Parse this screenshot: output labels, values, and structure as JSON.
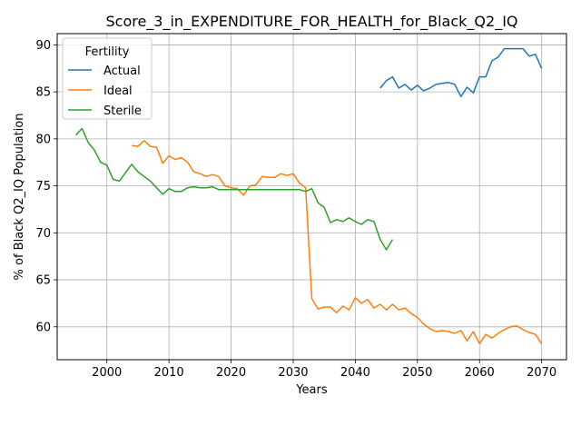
{
  "chart_data": {
    "type": "line",
    "title": "Score_3_in_EXPENDITURE_FOR_HEALTH_for_Black_Q2_IQ",
    "xlabel": "Years",
    "ylabel": "% of Black Q2_IQ Population",
    "xlim": [
      1992,
      2074
    ],
    "ylim": [
      56.5,
      91.2
    ],
    "xticks": [
      2000,
      2010,
      2020,
      2030,
      2040,
      2050,
      2060,
      2070
    ],
    "yticks": [
      60,
      65,
      70,
      75,
      80,
      85,
      90
    ],
    "grid": true,
    "legend": {
      "title": "Fertility",
      "position": "top-left"
    },
    "series": [
      {
        "name": "Actual",
        "color": "#1f77b4",
        "x": [
          2044,
          2045,
          2046,
          2047,
          2048,
          2049,
          2050,
          2051,
          2052,
          2053,
          2054,
          2055,
          2056,
          2057,
          2058,
          2059,
          2060,
          2061,
          2062,
          2063,
          2064,
          2065,
          2066,
          2067,
          2068,
          2069,
          2070
        ],
        "y": [
          85.4,
          86.2,
          86.6,
          85.4,
          85.8,
          85.2,
          85.7,
          85.1,
          85.4,
          85.8,
          85.9,
          86.0,
          85.8,
          84.5,
          85.5,
          84.9,
          86.6,
          86.6,
          88.3,
          88.7,
          89.6,
          89.6,
          89.6,
          89.6,
          88.8,
          89.0,
          87.5
        ]
      },
      {
        "name": "Ideal",
        "color": "#ff7f0e",
        "x": [
          2004,
          2005,
          2006,
          2007,
          2008,
          2009,
          2010,
          2011,
          2012,
          2013,
          2014,
          2015,
          2016,
          2017,
          2018,
          2019,
          2020,
          2021,
          2022,
          2023,
          2024,
          2025,
          2026,
          2027,
          2028,
          2029,
          2030,
          2031,
          2032,
          2033,
          2034,
          2035,
          2036,
          2037,
          2038,
          2039,
          2040,
          2041,
          2042,
          2043,
          2044,
          2045,
          2046,
          2047,
          2048,
          2049,
          2050,
          2051,
          2052,
          2053,
          2054,
          2055,
          2056,
          2057,
          2058,
          2059,
          2060,
          2061,
          2062,
          2063,
          2064,
          2065,
          2066,
          2067,
          2068,
          2069,
          2070
        ],
        "y": [
          79.3,
          79.2,
          79.8,
          79.2,
          79.1,
          77.4,
          78.2,
          77.8,
          78.0,
          77.5,
          76.5,
          76.3,
          76.0,
          76.2,
          76.0,
          75.0,
          74.8,
          74.7,
          74.0,
          75.0,
          75.1,
          76.0,
          75.9,
          75.9,
          76.3,
          76.1,
          76.3,
          75.3,
          74.8,
          63.0,
          61.9,
          62.1,
          62.1,
          61.5,
          62.2,
          61.8,
          63.1,
          62.5,
          62.9,
          62.0,
          62.4,
          61.8,
          62.4,
          61.8,
          62.0,
          61.4,
          61.0,
          60.3,
          59.8,
          59.5,
          59.6,
          59.5,
          59.3,
          59.6,
          58.5,
          59.5,
          58.2,
          59.2,
          58.8,
          59.3,
          59.7,
          60.0,
          60.1,
          59.7,
          59.4,
          59.2,
          58.2
        ]
      },
      {
        "name": "Sterile",
        "color": "#2ca02c",
        "x": [
          1995,
          1996,
          1997,
          1998,
          1999,
          2000,
          2001,
          2002,
          2003,
          2004,
          2005,
          2006,
          2007,
          2008,
          2009,
          2010,
          2011,
          2012,
          2013,
          2014,
          2015,
          2016,
          2017,
          2018,
          2019,
          2020,
          2021,
          2022,
          2023,
          2024,
          2025,
          2026,
          2027,
          2028,
          2029,
          2030,
          2031,
          2032,
          2033,
          2034,
          2035,
          2036,
          2037,
          2038,
          2039,
          2040,
          2041,
          2042,
          2043,
          2044,
          2045,
          2046
        ],
        "y": [
          80.4,
          81.1,
          79.6,
          78.8,
          77.5,
          77.2,
          75.7,
          75.5,
          76.4,
          77.3,
          76.5,
          76.0,
          75.5,
          74.8,
          74.1,
          74.7,
          74.4,
          74.4,
          74.8,
          74.9,
          74.8,
          74.8,
          74.9,
          74.6,
          74.6,
          74.6,
          74.6,
          74.6,
          74.6,
          74.6,
          74.6,
          74.6,
          74.6,
          74.6,
          74.6,
          74.6,
          74.6,
          74.4,
          74.7,
          73.2,
          72.7,
          71.1,
          71.4,
          71.2,
          71.6,
          71.2,
          70.9,
          71.4,
          71.2,
          69.3,
          68.2,
          69.3
        ]
      }
    ]
  }
}
